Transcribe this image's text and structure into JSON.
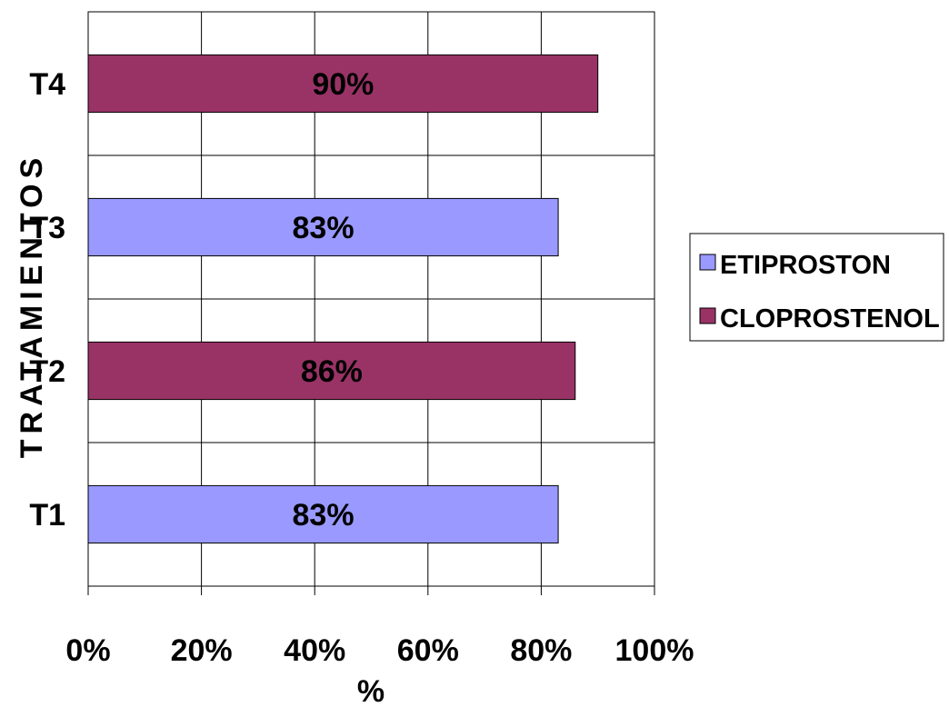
{
  "chart_data": {
    "type": "bar",
    "orientation": "horizontal",
    "categories": [
      "T1",
      "T2",
      "T3",
      "T4"
    ],
    "values": [
      83,
      86,
      83,
      90
    ],
    "value_labels": [
      "83%",
      "86%",
      "83%",
      "90%"
    ],
    "bar_series": [
      "ETIPROSTON",
      "CLOPROSTENOL",
      "ETIPROSTON",
      "CLOPROSTENOL"
    ],
    "series": [
      {
        "name": "ETIPROSTON",
        "color": "#9999ff"
      },
      {
        "name": "CLOPROSTENOL",
        "color": "#993366"
      }
    ],
    "xlabel": "%",
    "ylabel": "TRATAMIENTOS",
    "xlim": [
      0,
      100
    ],
    "x_ticks": [
      "0%",
      "20%",
      "40%",
      "60%",
      "80%",
      "100%"
    ],
    "grid": true,
    "legend_position": "right"
  }
}
